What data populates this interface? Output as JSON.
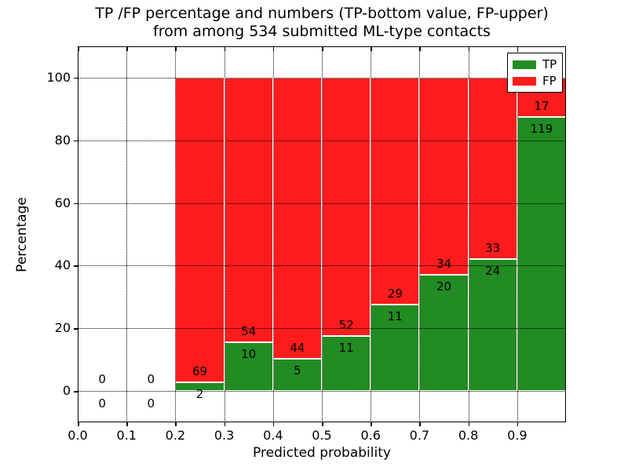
{
  "chart_data": {
    "type": "bar",
    "stacked": true,
    "normalized_to_percent": true,
    "title": "TP /FP percentage and numbers (TP-bottom value, FP-upper)",
    "subtitle": "from among 534 submitted ML-type contacts",
    "xlabel": "Predicted probability",
    "ylabel": "Percentage",
    "total_submitted": 534,
    "xlim": [
      0.0,
      1.0
    ],
    "ylim": [
      -10,
      110
    ],
    "xticks": [
      "0.0",
      "0.1",
      "0.2",
      "0.3",
      "0.4",
      "0.5",
      "0.6",
      "0.7",
      "0.8",
      "0.9"
    ],
    "yticks": [
      "0",
      "20",
      "40",
      "60",
      "80",
      "100"
    ],
    "grid": {
      "style": "dotted",
      "color": "#000000",
      "x_interval": 0.1,
      "y_interval": 20,
      "on_top": true
    },
    "legend": {
      "position": "upper right",
      "entries": [
        {
          "label": "TP",
          "color": "#228b22"
        },
        {
          "label": "FP",
          "color": "#fd1c1c"
        }
      ]
    },
    "bins": [
      {
        "range": [
          0.0,
          0.1
        ],
        "tp": 0,
        "fp": 0
      },
      {
        "range": [
          0.1,
          0.2
        ],
        "tp": 0,
        "fp": 0
      },
      {
        "range": [
          0.2,
          0.3
        ],
        "tp": 2,
        "fp": 69
      },
      {
        "range": [
          0.3,
          0.4
        ],
        "tp": 10,
        "fp": 54
      },
      {
        "range": [
          0.4,
          0.5
        ],
        "tp": 5,
        "fp": 44
      },
      {
        "range": [
          0.5,
          0.6
        ],
        "tp": 11,
        "fp": 52
      },
      {
        "range": [
          0.6,
          0.7
        ],
        "tp": 11,
        "fp": 29
      },
      {
        "range": [
          0.7,
          0.8
        ],
        "tp": 20,
        "fp": 34
      },
      {
        "range": [
          0.8,
          0.9
        ],
        "tp": 24,
        "fp": 33
      },
      {
        "range": [
          0.9,
          1.0
        ],
        "tp": 119,
        "fp": 17
      }
    ]
  }
}
